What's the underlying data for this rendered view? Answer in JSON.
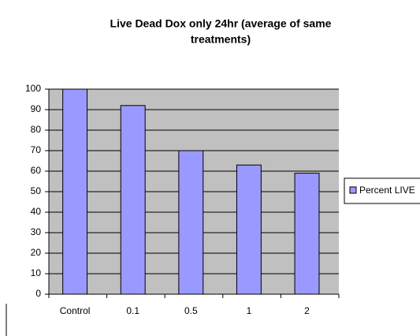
{
  "chart_data": {
    "type": "bar",
    "title": [
      "Live Dead Dox only 24hr (average of same",
      "treatments)"
    ],
    "categories": [
      "Control",
      "0.1",
      "0.5",
      "1",
      "2"
    ],
    "series": [
      {
        "name": "Percent LIVE",
        "color": "#9999ff",
        "values": [
          100,
          92,
          70,
          63,
          59
        ]
      }
    ],
    "ylim": [
      0,
      100
    ],
    "yticks": [
      0,
      10,
      20,
      30,
      40,
      50,
      60,
      70,
      80,
      90,
      100
    ],
    "grid": true,
    "legend": "right"
  }
}
